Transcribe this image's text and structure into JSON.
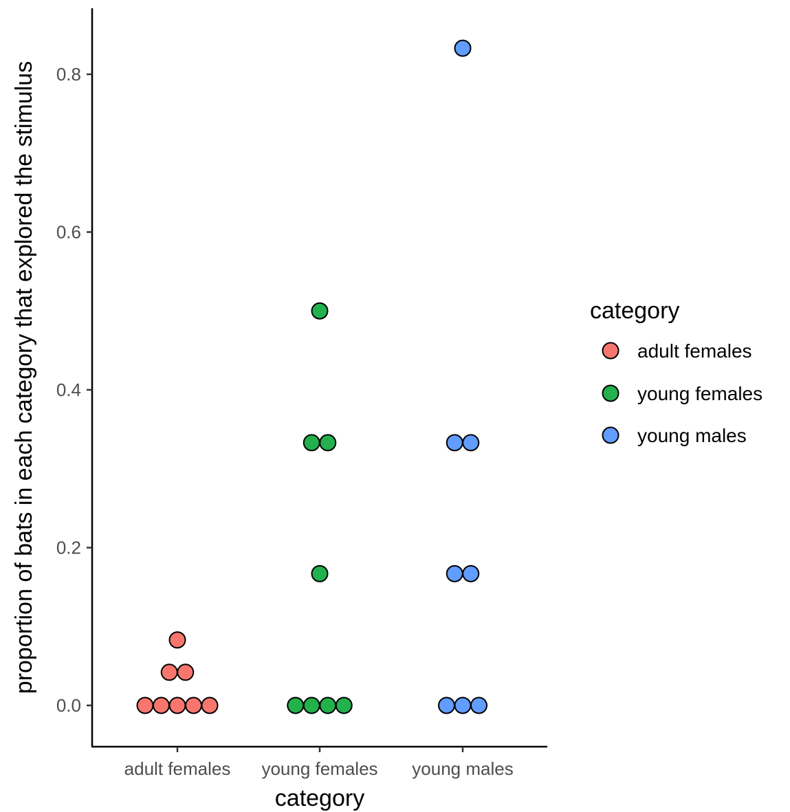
{
  "chart_data": {
    "type": "scatter",
    "subtype": "dotplot",
    "xlabel": "category",
    "ylabel": "proportion of bats in each category that explored the stimulus",
    "categories": [
      "adult females",
      "young females",
      "young males"
    ],
    "ylim": [
      -0.05,
      0.88
    ],
    "yticks": [
      0.0,
      0.2,
      0.4,
      0.6,
      0.8
    ],
    "ytick_labels": [
      "0.0",
      "0.2",
      "0.4",
      "0.6",
      "0.8"
    ],
    "grid": false,
    "legend": {
      "title": "category",
      "position": "right",
      "entries": [
        "adult females",
        "young females",
        "young males"
      ]
    },
    "series": [
      {
        "name": "adult females",
        "color": "#F8766D",
        "points": [
          {
            "y": 0.0,
            "count": 5
          },
          {
            "y": 0.042,
            "count": 2
          },
          {
            "y": 0.083,
            "count": 1
          }
        ]
      },
      {
        "name": "young females",
        "color": "#22B14C",
        "points": [
          {
            "y": 0.0,
            "count": 4
          },
          {
            "y": 0.167,
            "count": 1
          },
          {
            "y": 0.333,
            "count": 2
          },
          {
            "y": 0.5,
            "count": 1
          }
        ]
      },
      {
        "name": "young males",
        "color": "#619CFF",
        "points": [
          {
            "y": 0.0,
            "count": 3
          },
          {
            "y": 0.167,
            "count": 2
          },
          {
            "y": 0.333,
            "count": 2
          },
          {
            "y": 0.833,
            "count": 1
          }
        ]
      }
    ]
  }
}
